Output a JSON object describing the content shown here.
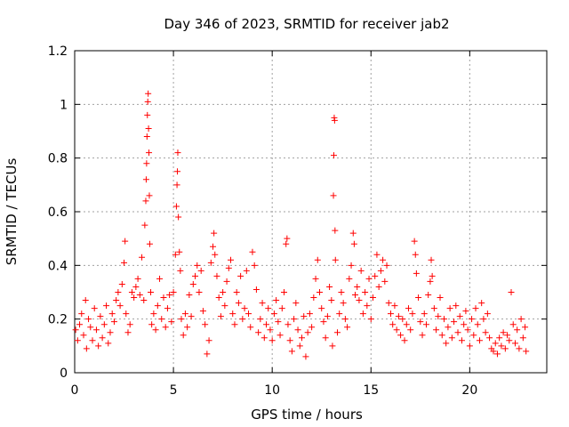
{
  "chart_data": {
    "type": "scatter",
    "title": "Day 346 of 2023, SRMTID for receiver jab2",
    "xlabel": "GPS time / hours",
    "ylabel": "SRMTID / TECUs",
    "xlim": [
      0,
      23.9
    ],
    "ylim": [
      0,
      1.2
    ],
    "xticks": [
      0,
      5,
      10,
      15,
      20
    ],
    "xtick_labels": [
      "0",
      "5",
      "10",
      "15",
      "20"
    ],
    "yticks": [
      0,
      0.2,
      0.4,
      0.6,
      0.8,
      1.0,
      1.2
    ],
    "ytick_labels": [
      "0",
      "0.2",
      "0.4",
      "0.6",
      "0.8",
      "1",
      "1.2"
    ],
    "grid": true,
    "marker": "+",
    "color": "#ff0000",
    "series": [
      {
        "name": "SRMTID",
        "points": [
          [
            0.05,
            0.16
          ],
          [
            0.15,
            0.12
          ],
          [
            0.25,
            0.18
          ],
          [
            0.35,
            0.22
          ],
          [
            0.45,
            0.14
          ],
          [
            0.55,
            0.27
          ],
          [
            0.6,
            0.09
          ],
          [
            0.7,
            0.2
          ],
          [
            0.8,
            0.17
          ],
          [
            0.9,
            0.12
          ],
          [
            1.0,
            0.24
          ],
          [
            1.1,
            0.16
          ],
          [
            1.2,
            0.1
          ],
          [
            1.3,
            0.21
          ],
          [
            1.4,
            0.13
          ],
          [
            1.5,
            0.18
          ],
          [
            1.6,
            0.25
          ],
          [
            1.7,
            0.11
          ],
          [
            1.8,
            0.15
          ],
          [
            1.9,
            0.22
          ],
          [
            2.0,
            0.19
          ],
          [
            2.1,
            0.27
          ],
          [
            2.2,
            0.3
          ],
          [
            2.3,
            0.25
          ],
          [
            2.4,
            0.33
          ],
          [
            2.5,
            0.41
          ],
          [
            2.55,
            0.49
          ],
          [
            2.6,
            0.22
          ],
          [
            2.7,
            0.15
          ],
          [
            2.8,
            0.18
          ],
          [
            2.9,
            0.3
          ],
          [
            3.0,
            0.28
          ],
          [
            3.1,
            0.32
          ],
          [
            3.2,
            0.35
          ],
          [
            3.3,
            0.29
          ],
          [
            3.4,
            0.43
          ],
          [
            3.5,
            0.27
          ],
          [
            3.55,
            0.55
          ],
          [
            3.6,
            0.64
          ],
          [
            3.62,
            0.72
          ],
          [
            3.64,
            0.78
          ],
          [
            3.66,
            0.88
          ],
          [
            3.68,
            0.96
          ],
          [
            3.7,
            1.01
          ],
          [
            3.72,
            1.04
          ],
          [
            3.74,
            0.91
          ],
          [
            3.76,
            0.82
          ],
          [
            3.78,
            0.66
          ],
          [
            3.8,
            0.48
          ],
          [
            3.85,
            0.3
          ],
          [
            3.9,
            0.18
          ],
          [
            4.0,
            0.22
          ],
          [
            4.1,
            0.16
          ],
          [
            4.2,
            0.25
          ],
          [
            4.3,
            0.35
          ],
          [
            4.4,
            0.2
          ],
          [
            4.5,
            0.28
          ],
          [
            4.6,
            0.17
          ],
          [
            4.7,
            0.24
          ],
          [
            4.8,
            0.29
          ],
          [
            4.9,
            0.19
          ],
          [
            5.0,
            0.3
          ],
          [
            5.1,
            0.44
          ],
          [
            5.15,
            0.62
          ],
          [
            5.18,
            0.7
          ],
          [
            5.2,
            0.75
          ],
          [
            5.22,
            0.82
          ],
          [
            5.25,
            0.58
          ],
          [
            5.3,
            0.45
          ],
          [
            5.35,
            0.38
          ],
          [
            5.4,
            0.2
          ],
          [
            5.5,
            0.14
          ],
          [
            5.6,
            0.22
          ],
          [
            5.7,
            0.17
          ],
          [
            5.8,
            0.29
          ],
          [
            5.9,
            0.21
          ],
          [
            6.0,
            0.33
          ],
          [
            6.1,
            0.36
          ],
          [
            6.2,
            0.4
          ],
          [
            6.3,
            0.3
          ],
          [
            6.4,
            0.38
          ],
          [
            6.5,
            0.23
          ],
          [
            6.6,
            0.18
          ],
          [
            6.7,
            0.07
          ],
          [
            6.8,
            0.12
          ],
          [
            6.9,
            0.41
          ],
          [
            7.0,
            0.47
          ],
          [
            7.05,
            0.52
          ],
          [
            7.1,
            0.44
          ],
          [
            7.2,
            0.36
          ],
          [
            7.3,
            0.28
          ],
          [
            7.4,
            0.21
          ],
          [
            7.5,
            0.3
          ],
          [
            7.6,
            0.25
          ],
          [
            7.7,
            0.34
          ],
          [
            7.8,
            0.39
          ],
          [
            7.9,
            0.42
          ],
          [
            8.0,
            0.22
          ],
          [
            8.1,
            0.18
          ],
          [
            8.2,
            0.3
          ],
          [
            8.3,
            0.26
          ],
          [
            8.4,
            0.36
          ],
          [
            8.5,
            0.2
          ],
          [
            8.6,
            0.24
          ],
          [
            8.7,
            0.38
          ],
          [
            8.8,
            0.22
          ],
          [
            8.9,
            0.17
          ],
          [
            9.0,
            0.45
          ],
          [
            9.1,
            0.4
          ],
          [
            9.2,
            0.31
          ],
          [
            9.3,
            0.15
          ],
          [
            9.4,
            0.2
          ],
          [
            9.5,
            0.26
          ],
          [
            9.6,
            0.13
          ],
          [
            9.7,
            0.18
          ],
          [
            9.8,
            0.24
          ],
          [
            9.9,
            0.16
          ],
          [
            10.0,
            0.12
          ],
          [
            10.1,
            0.22
          ],
          [
            10.2,
            0.27
          ],
          [
            10.3,
            0.19
          ],
          [
            10.4,
            0.14
          ],
          [
            10.5,
            0.24
          ],
          [
            10.6,
            0.3
          ],
          [
            10.7,
            0.48
          ],
          [
            10.75,
            0.5
          ],
          [
            10.8,
            0.18
          ],
          [
            10.9,
            0.12
          ],
          [
            11.0,
            0.08
          ],
          [
            11.1,
            0.2
          ],
          [
            11.2,
            0.26
          ],
          [
            11.3,
            0.16
          ],
          [
            11.4,
            0.1
          ],
          [
            11.5,
            0.13
          ],
          [
            11.6,
            0.21
          ],
          [
            11.7,
            0.06
          ],
          [
            11.8,
            0.15
          ],
          [
            11.9,
            0.22
          ],
          [
            12.0,
            0.17
          ],
          [
            12.1,
            0.28
          ],
          [
            12.2,
            0.35
          ],
          [
            12.3,
            0.42
          ],
          [
            12.4,
            0.3
          ],
          [
            12.5,
            0.24
          ],
          [
            12.6,
            0.19
          ],
          [
            12.7,
            0.13
          ],
          [
            12.8,
            0.21
          ],
          [
            12.9,
            0.32
          ],
          [
            13.0,
            0.27
          ],
          [
            13.05,
            0.1
          ],
          [
            13.1,
            0.66
          ],
          [
            13.12,
            0.81
          ],
          [
            13.14,
            0.95
          ],
          [
            13.16,
            0.94
          ],
          [
            13.18,
            0.53
          ],
          [
            13.2,
            0.42
          ],
          [
            13.3,
            0.15
          ],
          [
            13.4,
            0.22
          ],
          [
            13.5,
            0.3
          ],
          [
            13.6,
            0.26
          ],
          [
            13.7,
            0.2
          ],
          [
            13.8,
            0.17
          ],
          [
            13.9,
            0.35
          ],
          [
            14.0,
            0.4
          ],
          [
            14.1,
            0.52
          ],
          [
            14.15,
            0.48
          ],
          [
            14.2,
            0.29
          ],
          [
            14.3,
            0.32
          ],
          [
            14.4,
            0.27
          ],
          [
            14.5,
            0.38
          ],
          [
            14.6,
            0.22
          ],
          [
            14.7,
            0.3
          ],
          [
            14.8,
            0.25
          ],
          [
            14.9,
            0.35
          ],
          [
            15.0,
            0.2
          ],
          [
            15.1,
            0.28
          ],
          [
            15.2,
            0.36
          ],
          [
            15.3,
            0.44
          ],
          [
            15.4,
            0.32
          ],
          [
            15.5,
            0.38
          ],
          [
            15.6,
            0.42
          ],
          [
            15.7,
            0.34
          ],
          [
            15.8,
            0.4
          ],
          [
            15.9,
            0.26
          ],
          [
            16.0,
            0.22
          ],
          [
            16.1,
            0.18
          ],
          [
            16.2,
            0.25
          ],
          [
            16.3,
            0.16
          ],
          [
            16.4,
            0.21
          ],
          [
            16.5,
            0.14
          ],
          [
            16.6,
            0.2
          ],
          [
            16.7,
            0.12
          ],
          [
            16.8,
            0.18
          ],
          [
            16.9,
            0.24
          ],
          [
            17.0,
            0.16
          ],
          [
            17.1,
            0.22
          ],
          [
            17.2,
            0.49
          ],
          [
            17.25,
            0.44
          ],
          [
            17.3,
            0.37
          ],
          [
            17.4,
            0.28
          ],
          [
            17.5,
            0.19
          ],
          [
            17.6,
            0.14
          ],
          [
            17.7,
            0.22
          ],
          [
            17.8,
            0.18
          ],
          [
            17.9,
            0.29
          ],
          [
            18.0,
            0.34
          ],
          [
            18.05,
            0.42
          ],
          [
            18.1,
            0.36
          ],
          [
            18.2,
            0.24
          ],
          [
            18.3,
            0.16
          ],
          [
            18.4,
            0.21
          ],
          [
            18.5,
            0.28
          ],
          [
            18.6,
            0.14
          ],
          [
            18.7,
            0.2
          ],
          [
            18.8,
            0.11
          ],
          [
            18.9,
            0.17
          ],
          [
            19.0,
            0.24
          ],
          [
            19.1,
            0.13
          ],
          [
            19.2,
            0.19
          ],
          [
            19.3,
            0.25
          ],
          [
            19.4,
            0.15
          ],
          [
            19.5,
            0.21
          ],
          [
            19.6,
            0.12
          ],
          [
            19.7,
            0.18
          ],
          [
            19.8,
            0.23
          ],
          [
            19.9,
            0.16
          ],
          [
            20.0,
            0.1
          ],
          [
            20.1,
            0.2
          ],
          [
            20.2,
            0.14
          ],
          [
            20.3,
            0.24
          ],
          [
            20.4,
            0.18
          ],
          [
            20.5,
            0.12
          ],
          [
            20.6,
            0.26
          ],
          [
            20.7,
            0.2
          ],
          [
            20.8,
            0.15
          ],
          [
            20.9,
            0.22
          ],
          [
            21.0,
            0.13
          ],
          [
            21.1,
            0.09
          ],
          [
            21.2,
            0.08
          ],
          [
            21.3,
            0.11
          ],
          [
            21.4,
            0.07
          ],
          [
            21.5,
            0.13
          ],
          [
            21.6,
            0.1
          ],
          [
            21.7,
            0.15
          ],
          [
            21.8,
            0.09
          ],
          [
            21.9,
            0.14
          ],
          [
            22.0,
            0.12
          ],
          [
            22.1,
            0.3
          ],
          [
            22.2,
            0.18
          ],
          [
            22.3,
            0.11
          ],
          [
            22.4,
            0.16
          ],
          [
            22.5,
            0.09
          ],
          [
            22.6,
            0.2
          ],
          [
            22.7,
            0.13
          ],
          [
            22.8,
            0.17
          ],
          [
            22.85,
            0.08
          ]
        ]
      }
    ]
  }
}
